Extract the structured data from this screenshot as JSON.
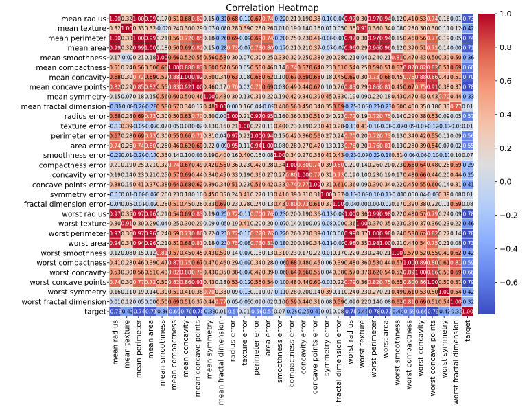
{
  "chart_data": {
    "type": "heatmap",
    "title": "Correlation Heatmap",
    "labels": [
      "mean radius",
      "mean texture",
      "mean perimeter",
      "mean area",
      "mean smoothness",
      "mean compactness",
      "mean concavity",
      "mean concave points",
      "mean symmetry",
      "mean fractal dimension",
      "radius error",
      "texture error",
      "perimeter error",
      "area error",
      "smoothness error",
      "compactness error",
      "concavity error",
      "concave points error",
      "symmetry error",
      "fractal dimension error",
      "worst radius",
      "worst texture",
      "worst perimeter",
      "worst area",
      "worst smoothness",
      "worst compactness",
      "worst concavity",
      "worst concave points",
      "worst symmetry",
      "worst fractal dimension",
      "target"
    ],
    "matrix": [
      [
        1.0,
        0.32,
        1.0,
        0.99,
        0.17,
        0.51,
        0.68,
        0.82,
        0.15,
        -0.31,
        0.68,
        -0.1,
        0.67,
        0.74,
        -0.22,
        0.21,
        0.19,
        0.38,
        -0.1,
        -0.04,
        0.97,
        0.3,
        0.97,
        0.94,
        0.12,
        0.41,
        0.53,
        0.74,
        0.16,
        0.01,
        -0.73
      ],
      [
        0.32,
        1.0,
        0.33,
        0.32,
        -0.02,
        0.24,
        0.3,
        0.29,
        0.07,
        -0.08,
        0.28,
        0.39,
        0.28,
        0.26,
        0.01,
        0.19,
        0.14,
        0.16,
        0.01,
        0.05,
        0.35,
        0.91,
        0.36,
        0.34,
        0.08,
        0.28,
        0.3,
        0.3,
        0.11,
        0.12,
        -0.42
      ],
      [
        1.0,
        0.33,
        1.0,
        0.99,
        0.21,
        0.56,
        0.72,
        0.85,
        0.18,
        -0.26,
        0.69,
        -0.09,
        0.69,
        0.74,
        -0.2,
        0.25,
        0.23,
        0.41,
        -0.08,
        -0.01,
        0.97,
        0.3,
        0.97,
        0.94,
        0.15,
        0.46,
        0.56,
        0.77,
        0.19,
        0.05,
        -0.74
      ],
      [
        0.99,
        0.32,
        0.99,
        1.0,
        0.18,
        0.5,
        0.69,
        0.82,
        0.15,
        -0.28,
        0.73,
        -0.07,
        0.73,
        0.8,
        -0.17,
        0.21,
        0.21,
        0.37,
        -0.07,
        -0.02,
        0.96,
        0.29,
        0.96,
        0.96,
        0.12,
        0.39,
        0.51,
        0.72,
        0.14,
        0.0,
        -0.71
      ],
      [
        0.17,
        -0.02,
        0.21,
        0.18,
        1.0,
        0.66,
        0.52,
        0.55,
        0.56,
        0.58,
        0.3,
        0.07,
        0.3,
        0.25,
        0.33,
        0.32,
        0.25,
        0.38,
        0.2,
        0.28,
        0.21,
        0.04,
        0.24,
        0.21,
        0.81,
        0.47,
        0.43,
        0.5,
        0.39,
        0.5,
        -0.36
      ],
      [
        0.51,
        0.24,
        0.56,
        0.5,
        0.66,
        1.0,
        0.88,
        0.83,
        0.6,
        0.57,
        0.5,
        0.05,
        0.55,
        0.46,
        0.14,
        0.74,
        0.57,
        0.64,
        0.23,
        0.51,
        0.54,
        0.25,
        0.59,
        0.51,
        0.57,
        0.87,
        0.82,
        0.82,
        0.51,
        0.69,
        -0.6
      ],
      [
        0.68,
        0.3,
        0.72,
        0.69,
        0.52,
        0.88,
        1.0,
        0.92,
        0.5,
        0.34,
        0.63,
        0.08,
        0.66,
        0.62,
        0.1,
        0.67,
        0.69,
        0.68,
        0.18,
        0.45,
        0.69,
        0.3,
        0.73,
        0.68,
        0.45,
        0.75,
        0.88,
        0.86,
        0.41,
        0.51,
        -0.7
      ],
      [
        0.82,
        0.29,
        0.85,
        0.82,
        0.55,
        0.83,
        0.92,
        1.0,
        0.46,
        0.17,
        0.7,
        0.02,
        0.71,
        0.69,
        0.03,
        0.49,
        0.44,
        0.62,
        0.1,
        0.26,
        0.83,
        0.29,
        0.86,
        0.81,
        0.45,
        0.67,
        0.75,
        0.91,
        0.38,
        0.37,
        -0.78
      ],
      [
        0.15,
        0.07,
        0.18,
        0.15,
        0.56,
        0.6,
        0.5,
        0.46,
        1.0,
        0.48,
        0.3,
        0.13,
        0.31,
        0.22,
        0.19,
        0.42,
        0.34,
        0.39,
        0.45,
        0.33,
        0.19,
        0.09,
        0.22,
        0.18,
        0.43,
        0.47,
        0.43,
        0.43,
        0.7,
        0.44,
        -0.33
      ],
      [
        -0.31,
        -0.08,
        -0.26,
        -0.28,
        0.58,
        0.57,
        0.34,
        0.17,
        0.48,
        1.0,
        0.0,
        0.16,
        0.04,
        -0.09,
        0.4,
        0.56,
        0.45,
        0.34,
        0.35,
        0.69,
        -0.25,
        -0.05,
        -0.21,
        -0.23,
        0.5,
        0.46,
        0.35,
        0.18,
        0.33,
        0.77,
        0.01
      ],
      [
        0.68,
        0.28,
        0.69,
        0.73,
        0.3,
        0.5,
        0.63,
        0.7,
        0.3,
        0.0,
        1.0,
        0.21,
        0.97,
        0.95,
        0.16,
        0.36,
        0.33,
        0.51,
        0.24,
        0.23,
        0.72,
        0.19,
        0.72,
        0.75,
        0.14,
        0.29,
        0.38,
        0.53,
        0.09,
        0.05,
        -0.57
      ],
      [
        -0.1,
        0.39,
        -0.09,
        -0.07,
        0.07,
        0.05,
        0.08,
        0.02,
        0.13,
        0.16,
        0.21,
        1.0,
        0.22,
        0.11,
        0.4,
        0.23,
        0.19,
        0.23,
        0.41,
        0.28,
        -0.11,
        0.41,
        -0.1,
        -0.08,
        -0.07,
        -0.09,
        -0.07,
        -0.12,
        -0.13,
        -0.05,
        0.01
      ],
      [
        0.67,
        0.28,
        0.69,
        0.73,
        0.3,
        0.55,
        0.66,
        0.71,
        0.31,
        0.04,
        0.97,
        0.22,
        1.0,
        0.94,
        0.15,
        0.42,
        0.36,
        0.56,
        0.27,
        0.24,
        0.7,
        0.2,
        0.72,
        0.73,
        0.13,
        0.34,
        0.42,
        0.55,
        0.11,
        0.09,
        -0.56
      ],
      [
        0.74,
        0.26,
        0.74,
        0.8,
        0.25,
        0.46,
        0.62,
        0.69,
        0.22,
        -0.09,
        0.95,
        0.11,
        0.94,
        1.0,
        0.08,
        0.28,
        0.27,
        0.42,
        0.13,
        0.13,
        0.76,
        0.2,
        0.76,
        0.81,
        0.13,
        0.28,
        0.39,
        0.54,
        0.07,
        0.02,
        -0.55
      ],
      [
        -0.22,
        0.01,
        -0.2,
        -0.17,
        0.33,
        0.14,
        0.1,
        0.03,
        0.19,
        0.4,
        0.16,
        0.4,
        0.15,
        0.08,
        1.0,
        0.34,
        0.27,
        0.33,
        0.41,
        0.43,
        -0.23,
        -0.07,
        -0.22,
        -0.18,
        0.31,
        -0.06,
        -0.06,
        -0.1,
        -0.11,
        0.1,
        0.07
      ],
      [
        0.21,
        0.19,
        0.25,
        0.21,
        0.32,
        0.74,
        0.67,
        0.49,
        0.42,
        0.56,
        0.36,
        0.23,
        0.42,
        0.28,
        0.34,
        1.0,
        0.8,
        0.74,
        0.39,
        0.8,
        0.2,
        0.14,
        0.26,
        0.2,
        0.23,
        0.68,
        0.64,
        0.48,
        0.28,
        0.59,
        -0.29
      ],
      [
        0.19,
        0.14,
        0.23,
        0.21,
        0.25,
        0.57,
        0.69,
        0.44,
        0.34,
        0.45,
        0.33,
        0.19,
        0.36,
        0.27,
        0.27,
        0.8,
        1.0,
        0.77,
        0.31,
        0.73,
        0.19,
        0.1,
        0.23,
        0.19,
        0.17,
        0.48,
        0.66,
        0.44,
        0.2,
        0.44,
        -0.25
      ],
      [
        0.38,
        0.16,
        0.41,
        0.37,
        0.38,
        0.64,
        0.68,
        0.62,
        0.39,
        0.34,
        0.51,
        0.23,
        0.56,
        0.42,
        0.33,
        0.74,
        0.77,
        1.0,
        0.31,
        0.61,
        0.36,
        0.09,
        0.39,
        0.34,
        0.22,
        0.45,
        0.55,
        0.6,
        0.14,
        0.31,
        -0.41
      ],
      [
        -0.1,
        0.01,
        -0.08,
        -0.07,
        0.2,
        0.23,
        0.18,
        0.1,
        0.45,
        0.35,
        0.24,
        0.41,
        0.27,
        0.13,
        0.41,
        0.39,
        0.31,
        0.31,
        1.0,
        0.37,
        -0.13,
        -0.08,
        -0.1,
        -0.11,
        -0.01,
        0.06,
        0.04,
        -0.03,
        0.39,
        0.08,
        0.01
      ],
      [
        -0.04,
        0.05,
        -0.01,
        -0.02,
        0.28,
        0.51,
        0.45,
        0.26,
        0.33,
        0.69,
        0.23,
        0.28,
        0.24,
        0.13,
        0.43,
        0.8,
        0.73,
        0.61,
        0.37,
        1.0,
        -0.04,
        -0.0,
        -0.0,
        -0.02,
        0.17,
        0.39,
        0.38,
        0.22,
        0.11,
        0.59,
        0.08
      ],
      [
        0.97,
        0.35,
        0.97,
        0.96,
        0.21,
        0.54,
        0.69,
        0.83,
        0.19,
        -0.25,
        0.72,
        -0.11,
        0.7,
        0.76,
        -0.23,
        0.2,
        0.19,
        0.36,
        -0.13,
        -0.04,
        1.0,
        0.36,
        0.99,
        0.98,
        0.22,
        0.48,
        0.57,
        0.79,
        0.24,
        0.09,
        -0.78
      ],
      [
        0.3,
        0.91,
        0.3,
        0.29,
        0.04,
        0.25,
        0.3,
        0.29,
        0.09,
        -0.05,
        0.19,
        0.41,
        0.2,
        0.2,
        -0.07,
        0.14,
        0.1,
        0.09,
        -0.08,
        -0.0,
        0.36,
        1.0,
        0.37,
        0.35,
        0.23,
        0.36,
        0.37,
        0.36,
        0.23,
        0.22,
        -0.46
      ],
      [
        0.97,
        0.36,
        0.97,
        0.96,
        0.24,
        0.59,
        0.73,
        0.86,
        0.22,
        -0.21,
        0.72,
        -0.1,
        0.72,
        0.76,
        -0.22,
        0.26,
        0.23,
        0.39,
        -0.1,
        -0.0,
        0.99,
        0.37,
        1.0,
        0.98,
        0.24,
        0.53,
        0.62,
        0.82,
        0.27,
        0.14,
        -0.78
      ],
      [
        0.94,
        0.34,
        0.94,
        0.96,
        0.21,
        0.51,
        0.68,
        0.81,
        0.18,
        -0.23,
        0.75,
        -0.08,
        0.73,
        0.81,
        -0.18,
        0.2,
        0.19,
        0.34,
        -0.11,
        -0.02,
        0.98,
        0.35,
        0.98,
        1.0,
        0.21,
        0.44,
        0.54,
        0.75,
        0.21,
        0.08,
        -0.73
      ],
      [
        0.12,
        0.08,
        0.15,
        0.12,
        0.81,
        0.57,
        0.45,
        0.45,
        0.43,
        0.5,
        0.14,
        -0.07,
        0.13,
        0.13,
        0.31,
        0.23,
        0.17,
        0.22,
        -0.01,
        0.17,
        0.22,
        0.23,
        0.24,
        0.21,
        1.0,
        0.57,
        0.52,
        0.55,
        0.49,
        0.62,
        -0.42
      ],
      [
        0.41,
        0.28,
        0.46,
        0.39,
        0.47,
        0.87,
        0.75,
        0.67,
        0.47,
        0.46,
        0.29,
        -0.09,
        0.34,
        0.28,
        -0.06,
        0.68,
        0.48,
        0.45,
        0.06,
        0.39,
        0.48,
        0.36,
        0.53,
        0.44,
        0.57,
        1.0,
        0.89,
        0.8,
        0.61,
        0.81,
        -0.59
      ],
      [
        0.53,
        0.3,
        0.56,
        0.51,
        0.43,
        0.82,
        0.88,
        0.75,
        0.43,
        0.35,
        0.38,
        -0.07,
        0.42,
        0.39,
        -0.06,
        0.64,
        0.66,
        0.55,
        0.04,
        0.38,
        0.57,
        0.37,
        0.62,
        0.54,
        0.52,
        0.89,
        1.0,
        0.86,
        0.53,
        0.69,
        -0.66
      ],
      [
        0.74,
        0.3,
        0.77,
        0.72,
        0.5,
        0.82,
        0.86,
        0.91,
        0.43,
        0.18,
        0.53,
        -0.12,
        0.55,
        0.54,
        -0.1,
        0.48,
        0.44,
        0.6,
        -0.03,
        0.22,
        0.79,
        0.36,
        0.82,
        0.75,
        0.55,
        0.8,
        0.86,
        1.0,
        0.5,
        0.51,
        -0.79
      ],
      [
        0.16,
        0.11,
        0.19,
        0.14,
        0.39,
        0.51,
        0.41,
        0.38,
        0.7,
        0.33,
        0.09,
        -0.13,
        0.11,
        0.07,
        -0.11,
        0.28,
        0.2,
        0.14,
        0.39,
        0.11,
        0.24,
        0.23,
        0.27,
        0.21,
        0.49,
        0.61,
        0.53,
        0.5,
        1.0,
        0.54,
        -0.42
      ],
      [
        0.01,
        0.12,
        0.05,
        0.0,
        0.5,
        0.69,
        0.51,
        0.37,
        0.44,
        0.77,
        0.05,
        -0.05,
        0.09,
        0.02,
        0.1,
        0.59,
        0.44,
        0.31,
        0.08,
        0.59,
        0.09,
        0.22,
        0.14,
        0.08,
        0.62,
        0.81,
        0.69,
        0.51,
        0.54,
        1.0,
        -0.32
      ],
      [
        -0.73,
        -0.42,
        -0.74,
        -0.71,
        -0.36,
        -0.6,
        -0.7,
        -0.78,
        -0.33,
        0.01,
        -0.57,
        0.01,
        -0.56,
        -0.55,
        0.07,
        -0.29,
        -0.25,
        -0.41,
        0.01,
        0.08,
        -0.78,
        -0.46,
        -0.78,
        -0.73,
        -0.42,
        -0.59,
        -0.66,
        -0.79,
        -0.42,
        -0.32,
        1.0
      ]
    ],
    "colorbar": {
      "min": -0.79,
      "max": 1.0,
      "ticks": [
        1.0,
        0.8,
        0.6,
        0.4,
        0.2,
        0.0,
        -0.2,
        -0.4,
        -0.6
      ],
      "tick_labels": [
        "1.0",
        "0.8",
        "0.6",
        "0.4",
        "0.2",
        "0.0",
        "−0.2",
        "−0.4",
        "−0.6"
      ],
      "colormap": "coolwarm"
    }
  }
}
